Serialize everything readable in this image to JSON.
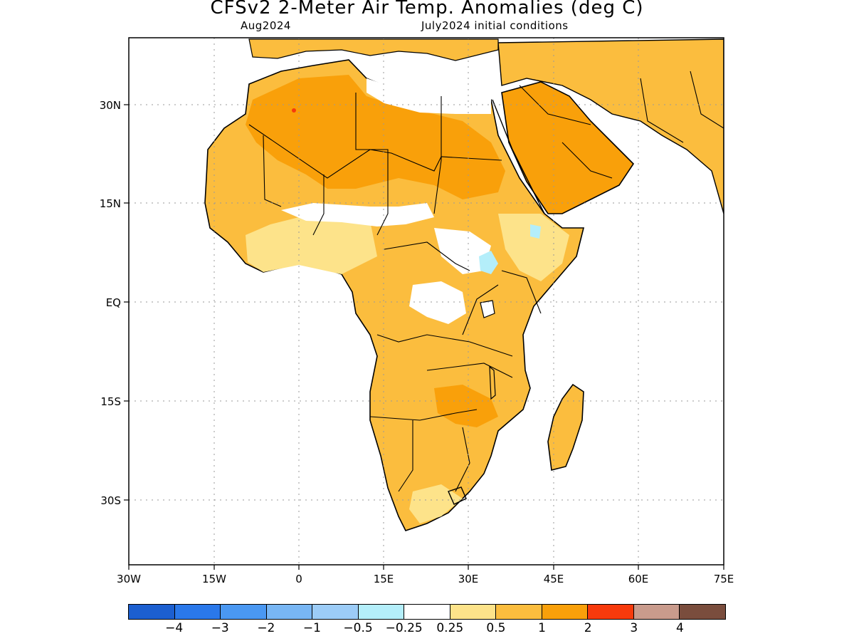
{
  "title": "CFSv2 2-Meter Air Temp. Anomalies (deg C)",
  "subtitle_left": "Aug2024",
  "subtitle_right": "July2024 initial conditions",
  "axes": {
    "lon_labels": [
      "30W",
      "15W",
      "0",
      "15E",
      "30E",
      "45E",
      "60E",
      "75E"
    ],
    "lat_labels": [
      "30N",
      "15N",
      "EQ",
      "15S",
      "30S"
    ]
  },
  "legend": {
    "colors": [
      "#1c5fd0",
      "#2a78ea",
      "#4a98f2",
      "#78b6f4",
      "#9cccf7",
      "#b4eefa",
      "#ffffff",
      "#fde38a",
      "#fbbd3e",
      "#f9a00a",
      "#f73a0c",
      "#c99b8c",
      "#7a4d3d"
    ],
    "labels": [
      "−4",
      "−3",
      "−2",
      "−1",
      "−0.5",
      "−0.25",
      "0.25",
      "0.5",
      "1",
      "2",
      "3",
      "4"
    ]
  },
  "palette": {
    "land_light": "#fde38a",
    "land_mid": "#fbbd3e",
    "land_warm": "#f9a00a",
    "land_hot": "#f73a0c",
    "cool": "#b4eefa"
  }
}
